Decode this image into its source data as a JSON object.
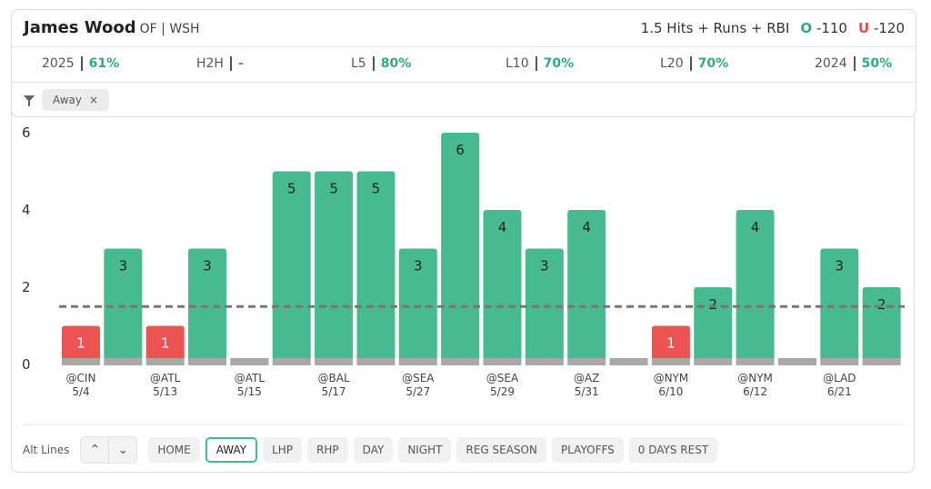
{
  "header": {
    "player": "James Wood",
    "position": "OF | WSH",
    "prop": "1.5 Hits + Runs + RBI",
    "over": {
      "label": "O",
      "odds": "-110"
    },
    "under": {
      "label": "U",
      "odds": "-120"
    }
  },
  "stats": [
    {
      "label": "2025",
      "value": "61%"
    },
    {
      "label": "H2H",
      "value": "-"
    },
    {
      "label": "L5",
      "value": "80%"
    },
    {
      "label": "L10",
      "value": "70%"
    },
    {
      "label": "L20",
      "value": "70%"
    },
    {
      "label": "2024",
      "value": "50%"
    }
  ],
  "filters": [
    {
      "label": "Away",
      "remove": "×"
    }
  ],
  "chart_data": {
    "type": "bar",
    "categories": [
      "@CIN",
      null,
      "@ATL",
      null,
      "@ATL",
      null,
      "@BAL",
      null,
      "@SEA",
      null,
      "@SEA",
      null,
      "@AZ",
      null,
      "@NYM",
      null,
      "@NYM",
      null,
      "@LAD",
      null
    ],
    "dates": [
      "5/4",
      null,
      "5/13",
      null,
      "5/15",
      null,
      "5/17",
      null,
      "5/27",
      null,
      "5/29",
      null,
      "5/31",
      null,
      "6/10",
      null,
      "6/12",
      null,
      "6/21",
      null
    ],
    "values": [
      1,
      3,
      1,
      3,
      0,
      5,
      5,
      5,
      3,
      6,
      4,
      3,
      4,
      0,
      1,
      2,
      4,
      0,
      3,
      2
    ],
    "line": 1.5,
    "colors": {
      "over": "#47ba91",
      "under": "#ec5454",
      "zero": "#a9a9a9",
      "line": "#777777"
    },
    "ylim": [
      0,
      6
    ],
    "yticks": [
      0,
      2,
      4,
      6
    ]
  },
  "alt_lines": {
    "label": "Alt Lines",
    "up": "⌃",
    "down": "⌄"
  },
  "buttons": [
    "HOME",
    "AWAY",
    "LHP",
    "RHP",
    "DAY",
    "NIGHT",
    "REG SEASON",
    "PLAYOFFS",
    "0 DAYS REST"
  ],
  "active_button": 1
}
